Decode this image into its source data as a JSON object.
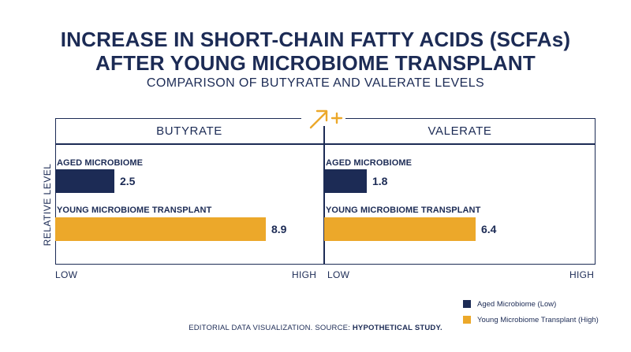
{
  "title_line1": "INCREASE IN SHORT-CHAIN FATTY ACIDS (SCFAs)",
  "title_line2": "AFTER YOUNG MICROBIOME TRANSPLANT",
  "subtitle": "COMPARISON OF BUTYRATE AND VALERATE LEVELS",
  "icon": "arrow-up-right-plus-icon",
  "colors": {
    "navy": "#1c2b55",
    "gold": "#eca82a"
  },
  "chart_data": {
    "type": "bar",
    "orientation": "horizontal",
    "ylabel": "RELATIVE LEVEL",
    "x_axis_labels": {
      "low": "LOW",
      "high": "HIGH"
    },
    "xlim": [
      0,
      10
    ],
    "panels": [
      {
        "title": "BUTYRATE",
        "bars": [
          {
            "label": "AGED MICROBIOME",
            "value": 2.5,
            "display": "2.5",
            "color": "#1c2b55"
          },
          {
            "label": "YOUNG MICROBIOME TRANSPLANT",
            "value": 8.9,
            "display": "8.9",
            "color": "#eca82a"
          }
        ]
      },
      {
        "title": "VALERATE",
        "bars": [
          {
            "label": "AGED MICROBIOME",
            "value": 1.8,
            "display": "1.8",
            "color": "#1c2b55"
          },
          {
            "label": "YOUNG MICROBIOME TRANSPLANT",
            "value": 6.4,
            "display": "6.4",
            "color": "#eca82a"
          }
        ]
      }
    ],
    "legend": [
      {
        "name": "Aged Microbiome (Low)",
        "color": "#1c2b55"
      },
      {
        "name": "Young Microbiome Transplant (High)",
        "color": "#eca82a"
      }
    ],
    "legend_position": "bottom-right"
  },
  "footer": {
    "prefix": "EDITORIAL DATA VISUALIZATION. SOURCE: ",
    "emphasis": "HYPOTHETICAL STUDY."
  }
}
